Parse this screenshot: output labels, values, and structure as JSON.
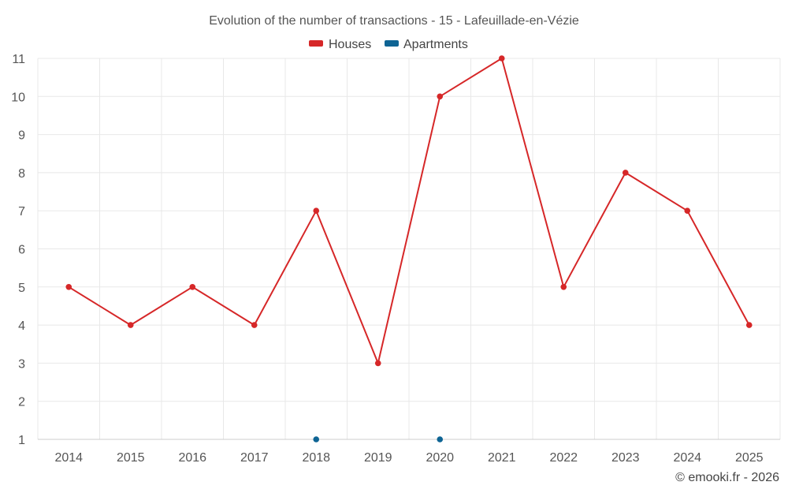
{
  "chart_data": {
    "type": "line",
    "title": "Evolution of the number of transactions - 15 - Lafeuillade-en-Vézie",
    "categories": [
      "2014",
      "2015",
      "2016",
      "2017",
      "2018",
      "2019",
      "2020",
      "2021",
      "2022",
      "2023",
      "2024",
      "2025"
    ],
    "series": [
      {
        "name": "Houses",
        "color": "#d62728",
        "values": [
          5,
          4,
          5,
          4,
          7,
          3,
          10,
          11,
          5,
          8,
          7,
          4
        ]
      },
      {
        "name": "Apartments",
        "color": "#0e6494",
        "values": [
          null,
          null,
          null,
          null,
          1,
          null,
          1,
          null,
          null,
          null,
          null,
          null
        ]
      }
    ],
    "ylim": [
      1,
      11
    ],
    "yticks": [
      1,
      2,
      3,
      4,
      5,
      6,
      7,
      8,
      9,
      10,
      11
    ],
    "xlabel": "",
    "ylabel": "",
    "grid": true,
    "legend": "top-center"
  },
  "credit": "© emooki.fr - 2026"
}
